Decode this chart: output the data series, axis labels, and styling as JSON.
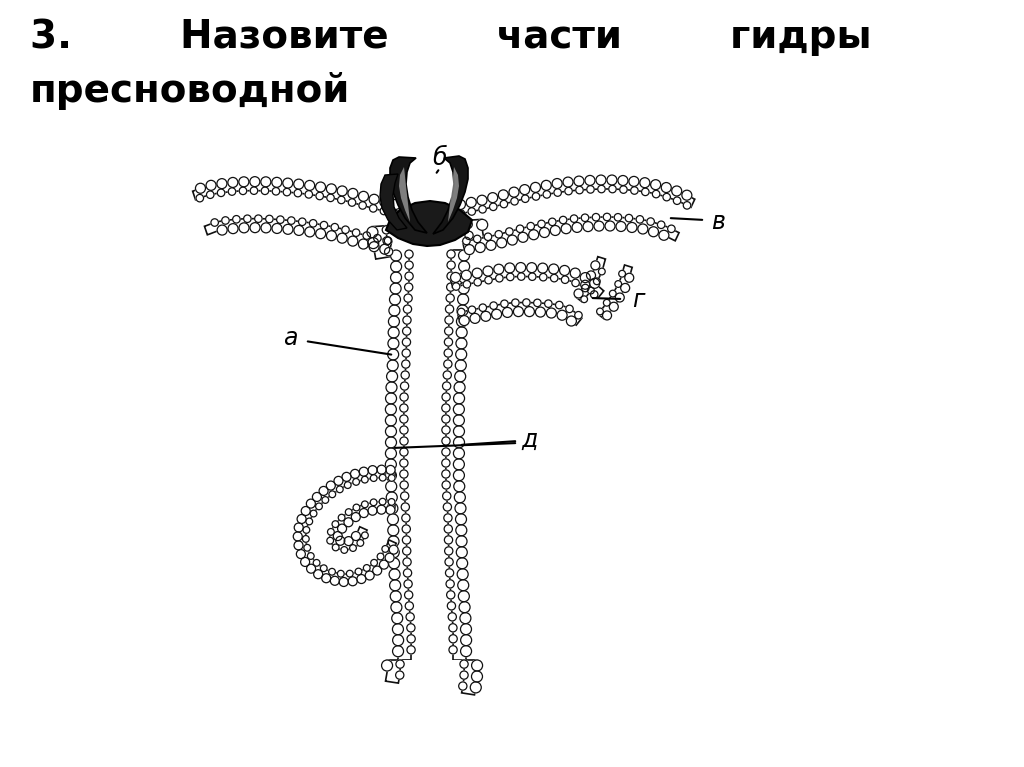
{
  "title_line1": "3.        Назовите        части        гидры",
  "title_line2": "пресноводной",
  "title_fontsize": 28,
  "label_fontsize": 17,
  "bg_color": "#ffffff",
  "draw_color": "#111111",
  "label_a": "а",
  "label_b": "б",
  "label_v": "в",
  "label_g": "г",
  "label_d": "д"
}
